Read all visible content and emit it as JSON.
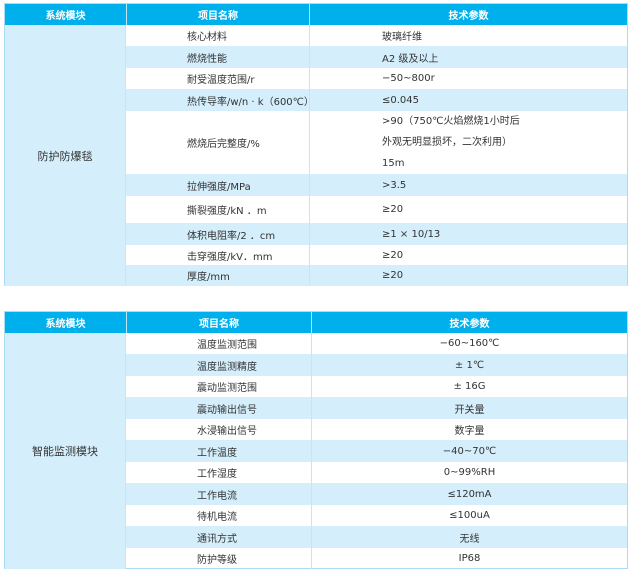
{
  "headers": {
    "module": "系统模块",
    "item": "项目名称",
    "param": "技术参数"
  },
  "table1": {
    "module": "防护防爆毯",
    "rows": [
      {
        "item": "核心材料",
        "value": "玻璃纤维"
      },
      {
        "item": "燃烧性能",
        "value": "A2 级及以上"
      },
      {
        "item": "耐受温度范围/r",
        "value": "−50~800r"
      },
      {
        "item": "热传导率/w/n · k（600℃）",
        "value": "≤0.045"
      },
      {
        "item": "燃烧后完整度/%",
        "value_lines": [
          ">90（750℃火焰燃烧1小时后",
          "外观无明显损坏，二次利用）",
          "15m"
        ]
      },
      {
        "item": "拉伸强度/MPa",
        "value": ">3.5"
      },
      {
        "item": "撕裂强度/kN ．m",
        "value": "≥20"
      },
      {
        "item": "体积电阻率/2 ．cm",
        "value": "≥1 × 10/13"
      },
      {
        "item": "击穿强度/kV．mm",
        "value": "≥20"
      },
      {
        "item": "厚度/mm",
        "value": "≥20"
      }
    ]
  },
  "table2": {
    "module": "智能监测模块",
    "rows": [
      {
        "item": "温度监测范围",
        "value": "−60~160℃"
      },
      {
        "item": "温度监测精度",
        "value": "± 1℃"
      },
      {
        "item": "震动监测范围",
        "value": "± 16G"
      },
      {
        "item": "震动输出信号",
        "value": "开关量"
      },
      {
        "item": "水浸输出信号",
        "value": "数字量"
      },
      {
        "item": "工作温度",
        "value": "−40~70℃"
      },
      {
        "item": "工作湿度",
        "value": "0~99%RH"
      },
      {
        "item": "工作电流",
        "value": "≤120mA"
      },
      {
        "item": "待机电流",
        "value": "≤100uA"
      },
      {
        "item": "通讯方式",
        "value": "无线"
      },
      {
        "item": "防护等级",
        "value": "IP68"
      }
    ]
  },
  "colors": {
    "header": "#00b0ec",
    "stripe": "#d4eefb"
  }
}
